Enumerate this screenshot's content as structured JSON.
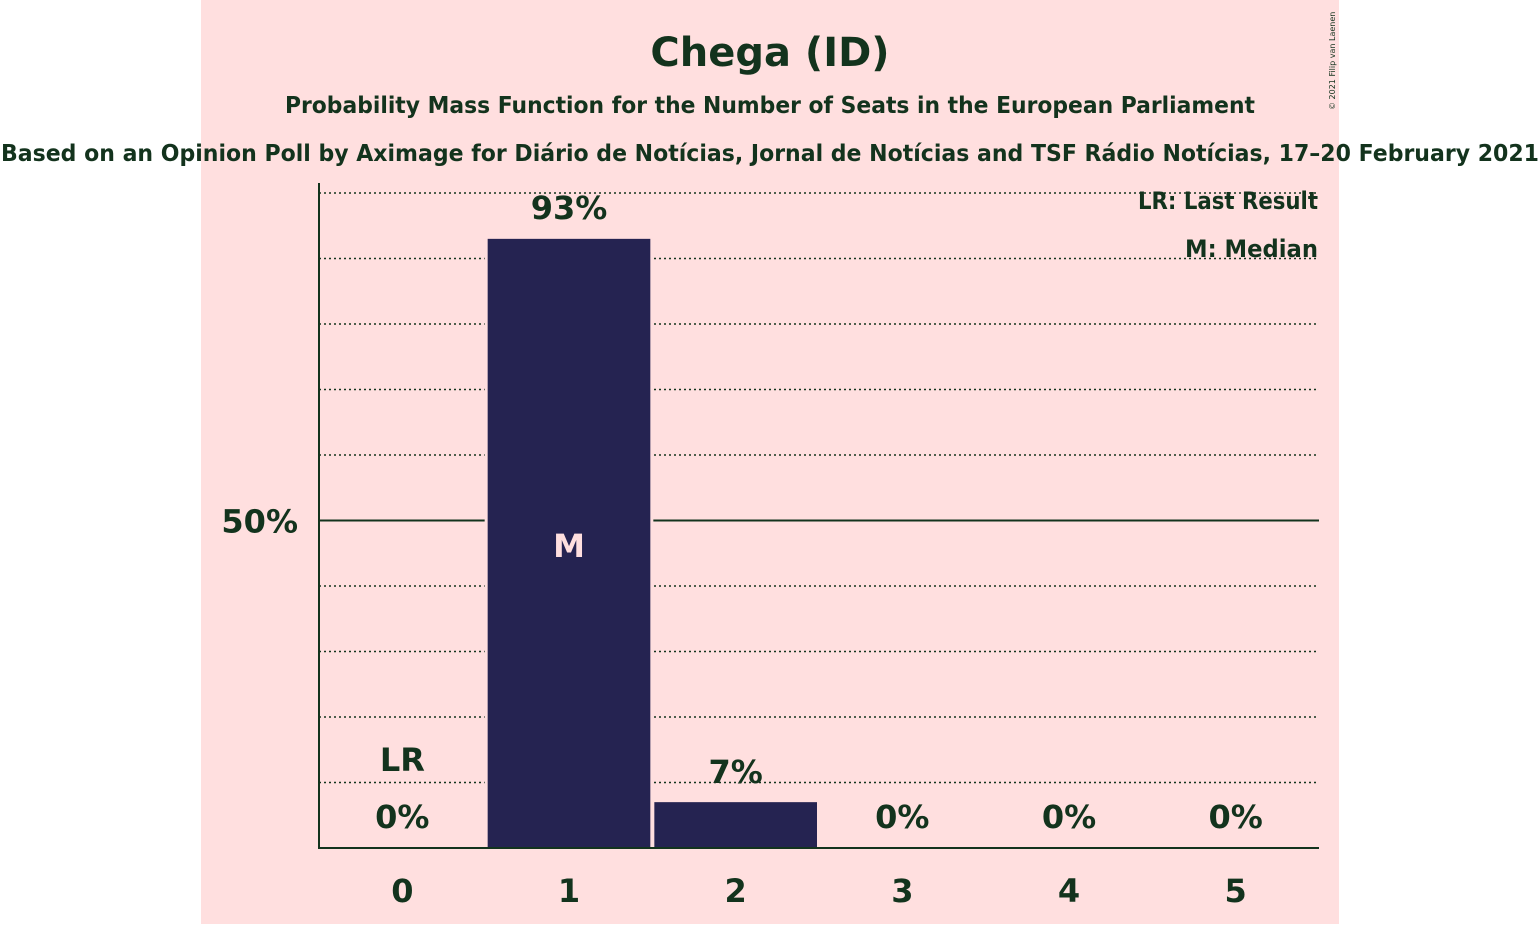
{
  "chart_data": {
    "type": "bar",
    "title": "Chega (ID)",
    "subtitle": "Probability Mass Function for the Number of Seats in the European Parliament",
    "source_line": "Based on an Opinion Poll by Aximage for Diário de Notícias, Jornal de Notícias and TSF Rádio Notícias, 17–20 February 2021",
    "copyright": "© 2021 Filip van Laenen",
    "categories": [
      "0",
      "1",
      "2",
      "3",
      "4",
      "5"
    ],
    "values": [
      0,
      93,
      7,
      0,
      0,
      0
    ],
    "value_labels": [
      "0%",
      "93%",
      "7%",
      "0%",
      "0%",
      "0%"
    ],
    "ylim": [
      0,
      100
    ],
    "y_tick_label": "50%",
    "y_tick_value": 50,
    "gridline_step": 10,
    "last_result_seats": 0,
    "last_result_marker": "LR",
    "median_seats": 1,
    "median_marker": "M",
    "legend": [
      "LR: Last Result",
      "M: Median"
    ],
    "legend_position": "top-right",
    "colors": {
      "bar": "#252351",
      "background_band": "#ffdfdf",
      "text": "#13331d",
      "median_text": "#ffdfdf"
    }
  }
}
